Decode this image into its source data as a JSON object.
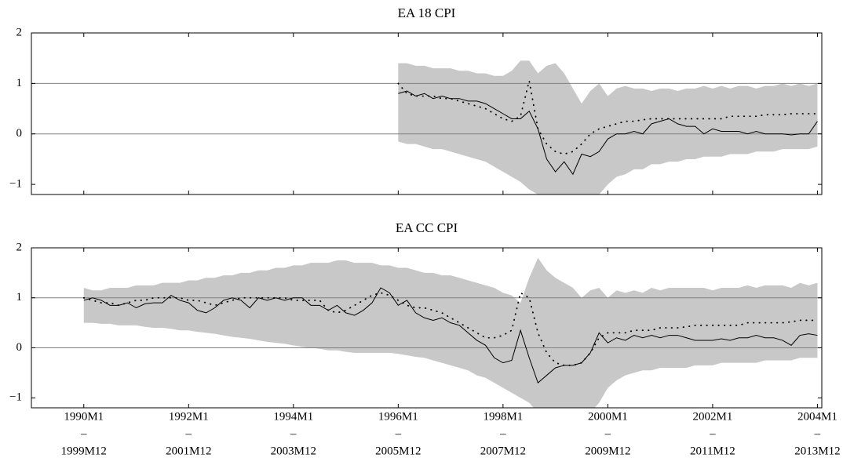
{
  "chart_data": [
    {
      "type": "line",
      "title": "EA 18 CPI",
      "x": [
        72,
        74,
        76,
        78,
        80,
        82,
        84,
        86,
        88,
        90,
        92,
        94,
        96,
        98,
        100,
        102,
        104,
        106,
        108,
        110,
        112,
        114,
        116,
        118,
        120,
        122,
        124,
        126,
        128,
        130,
        132,
        134,
        136,
        138,
        140,
        142,
        144,
        146,
        148,
        150,
        152,
        154,
        156,
        158,
        160,
        162,
        164,
        166,
        168
      ],
      "band": {
        "color": "#c8c8c8",
        "upper": [
          1.4,
          1.4,
          1.35,
          1.35,
          1.3,
          1.3,
          1.3,
          1.25,
          1.25,
          1.2,
          1.2,
          1.15,
          1.15,
          1.25,
          1.45,
          1.45,
          1.2,
          1.35,
          1.4,
          1.2,
          0.9,
          0.6,
          0.85,
          1.0,
          0.75,
          0.9,
          0.95,
          0.9,
          0.9,
          0.85,
          0.9,
          0.9,
          0.85,
          0.9,
          0.9,
          0.95,
          0.9,
          0.95,
          0.9,
          0.95,
          0.95,
          0.9,
          0.95,
          0.95,
          1.0,
          0.95,
          1.0,
          0.95,
          1.0
        ],
        "lower": [
          -0.15,
          -0.2,
          -0.2,
          -0.25,
          -0.3,
          -0.3,
          -0.35,
          -0.4,
          -0.45,
          -0.5,
          -0.55,
          -0.65,
          -0.75,
          -0.85,
          -0.95,
          -1.1,
          -1.2,
          -1.4,
          -1.5,
          -1.6,
          -1.6,
          -1.5,
          -1.4,
          -1.2,
          -1.0,
          -0.85,
          -0.8,
          -0.7,
          -0.7,
          -0.6,
          -0.6,
          -0.55,
          -0.55,
          -0.5,
          -0.5,
          -0.45,
          -0.45,
          -0.45,
          -0.4,
          -0.4,
          -0.4,
          -0.35,
          -0.35,
          -0.35,
          -0.3,
          -0.3,
          -0.3,
          -0.3,
          -0.25
        ]
      },
      "series": [
        {
          "color": "#000000",
          "dash": "solid",
          "values": [
            0.8,
            0.85,
            0.75,
            0.8,
            0.7,
            0.75,
            0.7,
            0.7,
            0.65,
            0.65,
            0.6,
            0.5,
            0.4,
            0.3,
            0.3,
            0.45,
            0.1,
            -0.5,
            -0.75,
            -0.55,
            -0.8,
            -0.4,
            -0.45,
            -0.35,
            -0.1,
            0.0,
            0.0,
            0.05,
            0.0,
            0.2,
            0.25,
            0.3,
            0.2,
            0.15,
            0.15,
            0.0,
            0.1,
            0.05,
            0.05,
            0.05,
            0.0,
            0.05,
            0.0,
            0.0,
            0.0,
            -0.02,
            0.0,
            0.0,
            0.25
          ]
        },
        {
          "color": "#000000",
          "dash": "dotted",
          "values": [
            1.0,
            0.8,
            0.75,
            0.75,
            0.75,
            0.7,
            0.7,
            0.65,
            0.6,
            0.55,
            0.5,
            0.4,
            0.3,
            0.25,
            0.35,
            1.05,
            0.1,
            -0.2,
            -0.35,
            -0.4,
            -0.35,
            -0.2,
            0.0,
            0.1,
            0.15,
            0.2,
            0.25,
            0.25,
            0.28,
            0.3,
            0.3,
            0.3,
            0.3,
            0.3,
            0.3,
            0.3,
            0.3,
            0.3,
            0.35,
            0.35,
            0.35,
            0.35,
            0.38,
            0.38,
            0.38,
            0.4,
            0.4,
            0.4,
            0.4
          ]
        }
      ],
      "xlim": [
        -12,
        169
      ],
      "ylim": [
        -1.2,
        2
      ],
      "yticks": [
        {
          "value": -1,
          "label": "−1"
        },
        0,
        1,
        2
      ],
      "hlines": [
        0,
        1
      ]
    },
    {
      "type": "line",
      "title": "EA CC CPI",
      "x": [
        0,
        2,
        4,
        6,
        8,
        10,
        12,
        14,
        16,
        18,
        20,
        22,
        24,
        26,
        28,
        30,
        32,
        34,
        36,
        38,
        40,
        42,
        44,
        46,
        48,
        50,
        52,
        54,
        56,
        58,
        60,
        62,
        64,
        66,
        68,
        70,
        72,
        74,
        76,
        78,
        80,
        82,
        84,
        86,
        88,
        90,
        92,
        94,
        96,
        98,
        100,
        102,
        104,
        106,
        108,
        110,
        112,
        114,
        116,
        118,
        120,
        122,
        124,
        126,
        128,
        130,
        132,
        134,
        136,
        138,
        140,
        142,
        144,
        146,
        148,
        150,
        152,
        154,
        156,
        158,
        160,
        162,
        164,
        166,
        168
      ],
      "band": {
        "color": "#c8c8c8",
        "upper": [
          1.2,
          1.15,
          1.15,
          1.2,
          1.2,
          1.2,
          1.25,
          1.25,
          1.25,
          1.3,
          1.3,
          1.3,
          1.35,
          1.35,
          1.4,
          1.4,
          1.45,
          1.45,
          1.5,
          1.5,
          1.55,
          1.55,
          1.6,
          1.6,
          1.65,
          1.65,
          1.7,
          1.7,
          1.7,
          1.75,
          1.75,
          1.7,
          1.7,
          1.7,
          1.65,
          1.65,
          1.6,
          1.6,
          1.55,
          1.5,
          1.5,
          1.45,
          1.45,
          1.4,
          1.35,
          1.3,
          1.25,
          1.2,
          1.1,
          1.05,
          0.9,
          1.4,
          1.8,
          1.55,
          1.4,
          1.3,
          1.2,
          1.0,
          1.15,
          1.2,
          1.0,
          1.15,
          1.1,
          1.15,
          1.1,
          1.2,
          1.15,
          1.2,
          1.2,
          1.2,
          1.2,
          1.2,
          1.15,
          1.2,
          1.2,
          1.2,
          1.25,
          1.2,
          1.25,
          1.25,
          1.25,
          1.2,
          1.3,
          1.25,
          1.3
        ],
        "lower": [
          0.5,
          0.5,
          0.48,
          0.48,
          0.45,
          0.45,
          0.45,
          0.42,
          0.4,
          0.4,
          0.38,
          0.35,
          0.35,
          0.32,
          0.3,
          0.28,
          0.25,
          0.22,
          0.2,
          0.18,
          0.15,
          0.12,
          0.1,
          0.08,
          0.05,
          0.02,
          0.0,
          -0.02,
          -0.05,
          -0.05,
          -0.08,
          -0.1,
          -0.1,
          -0.1,
          -0.1,
          -0.1,
          -0.12,
          -0.15,
          -0.18,
          -0.2,
          -0.25,
          -0.3,
          -0.35,
          -0.4,
          -0.45,
          -0.55,
          -0.6,
          -0.7,
          -0.8,
          -0.9,
          -1.0,
          -1.1,
          -1.3,
          -1.4,
          -1.5,
          -1.5,
          -1.5,
          -1.45,
          -1.3,
          -1.1,
          -0.8,
          -0.65,
          -0.55,
          -0.5,
          -0.45,
          -0.45,
          -0.4,
          -0.4,
          -0.4,
          -0.4,
          -0.35,
          -0.35,
          -0.35,
          -0.3,
          -0.3,
          -0.3,
          -0.3,
          -0.3,
          -0.25,
          -0.25,
          -0.25,
          -0.25,
          -0.2,
          -0.2,
          -0.2
        ]
      },
      "series": [
        {
          "color": "#000000",
          "dash": "solid",
          "values": [
            0.95,
            1.0,
            0.95,
            0.85,
            0.85,
            0.9,
            0.8,
            0.88,
            0.9,
            0.9,
            1.05,
            0.95,
            0.9,
            0.75,
            0.7,
            0.8,
            0.95,
            1.0,
            0.95,
            0.8,
            1.0,
            0.95,
            1.0,
            0.95,
            1.0,
            1.0,
            0.85,
            0.85,
            0.75,
            0.85,
            0.7,
            0.65,
            0.75,
            0.9,
            1.2,
            1.1,
            0.85,
            0.95,
            0.7,
            0.6,
            0.55,
            0.6,
            0.5,
            0.45,
            0.3,
            0.15,
            0.05,
            -0.2,
            -0.3,
            -0.25,
            0.35,
            -0.2,
            -0.7,
            -0.55,
            -0.4,
            -0.35,
            -0.35,
            -0.3,
            -0.1,
            0.3,
            0.1,
            0.2,
            0.15,
            0.25,
            0.2,
            0.25,
            0.2,
            0.25,
            0.25,
            0.2,
            0.15,
            0.15,
            0.15,
            0.18,
            0.15,
            0.2,
            0.2,
            0.25,
            0.2,
            0.2,
            0.15,
            0.05,
            0.25,
            0.28,
            0.25
          ]
        },
        {
          "color": "#000000",
          "dash": "dotted",
          "values": [
            1.0,
            0.95,
            0.9,
            0.9,
            0.85,
            0.9,
            0.95,
            0.95,
            1.0,
            1.0,
            1.0,
            1.0,
            0.95,
            0.95,
            0.9,
            0.85,
            0.9,
            0.95,
            1.0,
            1.0,
            1.0,
            1.0,
            1.0,
            1.0,
            0.95,
            0.95,
            0.95,
            0.95,
            0.75,
            0.7,
            0.75,
            0.85,
            0.95,
            1.05,
            1.1,
            1.05,
            0.95,
            0.85,
            0.8,
            0.8,
            0.75,
            0.7,
            0.6,
            0.5,
            0.4,
            0.3,
            0.2,
            0.2,
            0.25,
            0.35,
            1.1,
            1.0,
            0.3,
            -0.1,
            -0.3,
            -0.35,
            -0.35,
            -0.3,
            -0.1,
            0.2,
            0.3,
            0.3,
            0.3,
            0.35,
            0.35,
            0.35,
            0.4,
            0.4,
            0.4,
            0.42,
            0.45,
            0.45,
            0.45,
            0.45,
            0.45,
            0.45,
            0.5,
            0.5,
            0.5,
            0.5,
            0.5,
            0.52,
            0.55,
            0.55,
            0.55
          ]
        }
      ],
      "xlim": [
        -12,
        169
      ],
      "ylim": [
        -1.2,
        2
      ],
      "yticks": [
        {
          "value": -1,
          "label": "−1"
        },
        0,
        1,
        2
      ],
      "hlines": [
        0,
        1
      ],
      "xticks": [
        {
          "value": 0,
          "label": [
            "1990M1",
            "–",
            "1999M12"
          ]
        },
        {
          "value": 24,
          "label": [
            "1992M1",
            "–",
            "2001M12"
          ]
        },
        {
          "value": 48,
          "label": [
            "1994M1",
            "–",
            "2003M12"
          ]
        },
        {
          "value": 72,
          "label": [
            "1996M1",
            "–",
            "2005M12"
          ]
        },
        {
          "value": 96,
          "label": [
            "1998M1",
            "–",
            "2007M12"
          ]
        },
        {
          "value": 120,
          "label": [
            "2000M1",
            "–",
            "2009M12"
          ]
        },
        {
          "value": 144,
          "label": [
            "2002M1",
            "–",
            "2011M12"
          ]
        },
        {
          "value": 168,
          "label": [
            "2004M1",
            "–",
            "2013M12"
          ]
        }
      ]
    }
  ]
}
